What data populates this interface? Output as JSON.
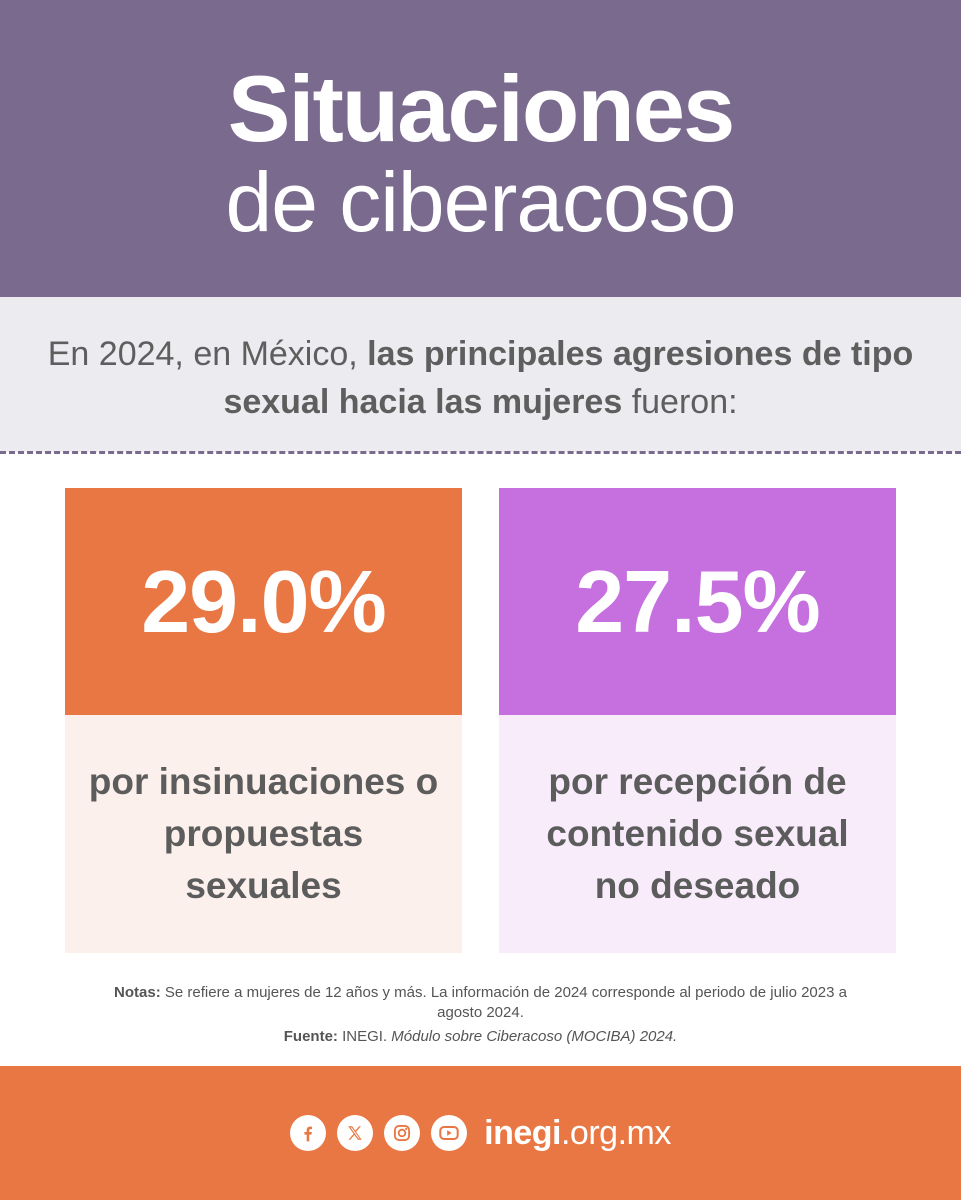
{
  "header": {
    "title_line1": "Situaciones",
    "title_line2": "de ciberacoso"
  },
  "intro": {
    "prefix": "En 2024, en México, ",
    "bold": "las principales agresiones de tipo sexual hacia las mujeres",
    "suffix": " fueron:"
  },
  "stats": [
    {
      "value": "29.0%",
      "label": "por insinuaciones o propuestas sexuales",
      "color": "#e97743",
      "bg": "#fbf0ec"
    },
    {
      "value": "27.5%",
      "label": "por recepción de contenido sexual no deseado",
      "color": "#c66fdf",
      "bg": "#f8ecfb"
    }
  ],
  "notes": {
    "notes_label": "Notas:",
    "notes_text": " Se refiere a mujeres de 12 años y más. La información de 2024 corresponde al periodo de julio 2023 a agosto 2024.",
    "source_label": "Fuente:",
    "source_org": " INEGI. ",
    "source_title": "Módulo sobre Ciberacoso (MOCIBA) 2024."
  },
  "footer": {
    "domain_bold": "inegi",
    "domain_rest": ".org.mx",
    "icons": [
      "facebook-icon",
      "x-icon",
      "instagram-icon",
      "youtube-icon"
    ],
    "accent": "#e97743"
  }
}
